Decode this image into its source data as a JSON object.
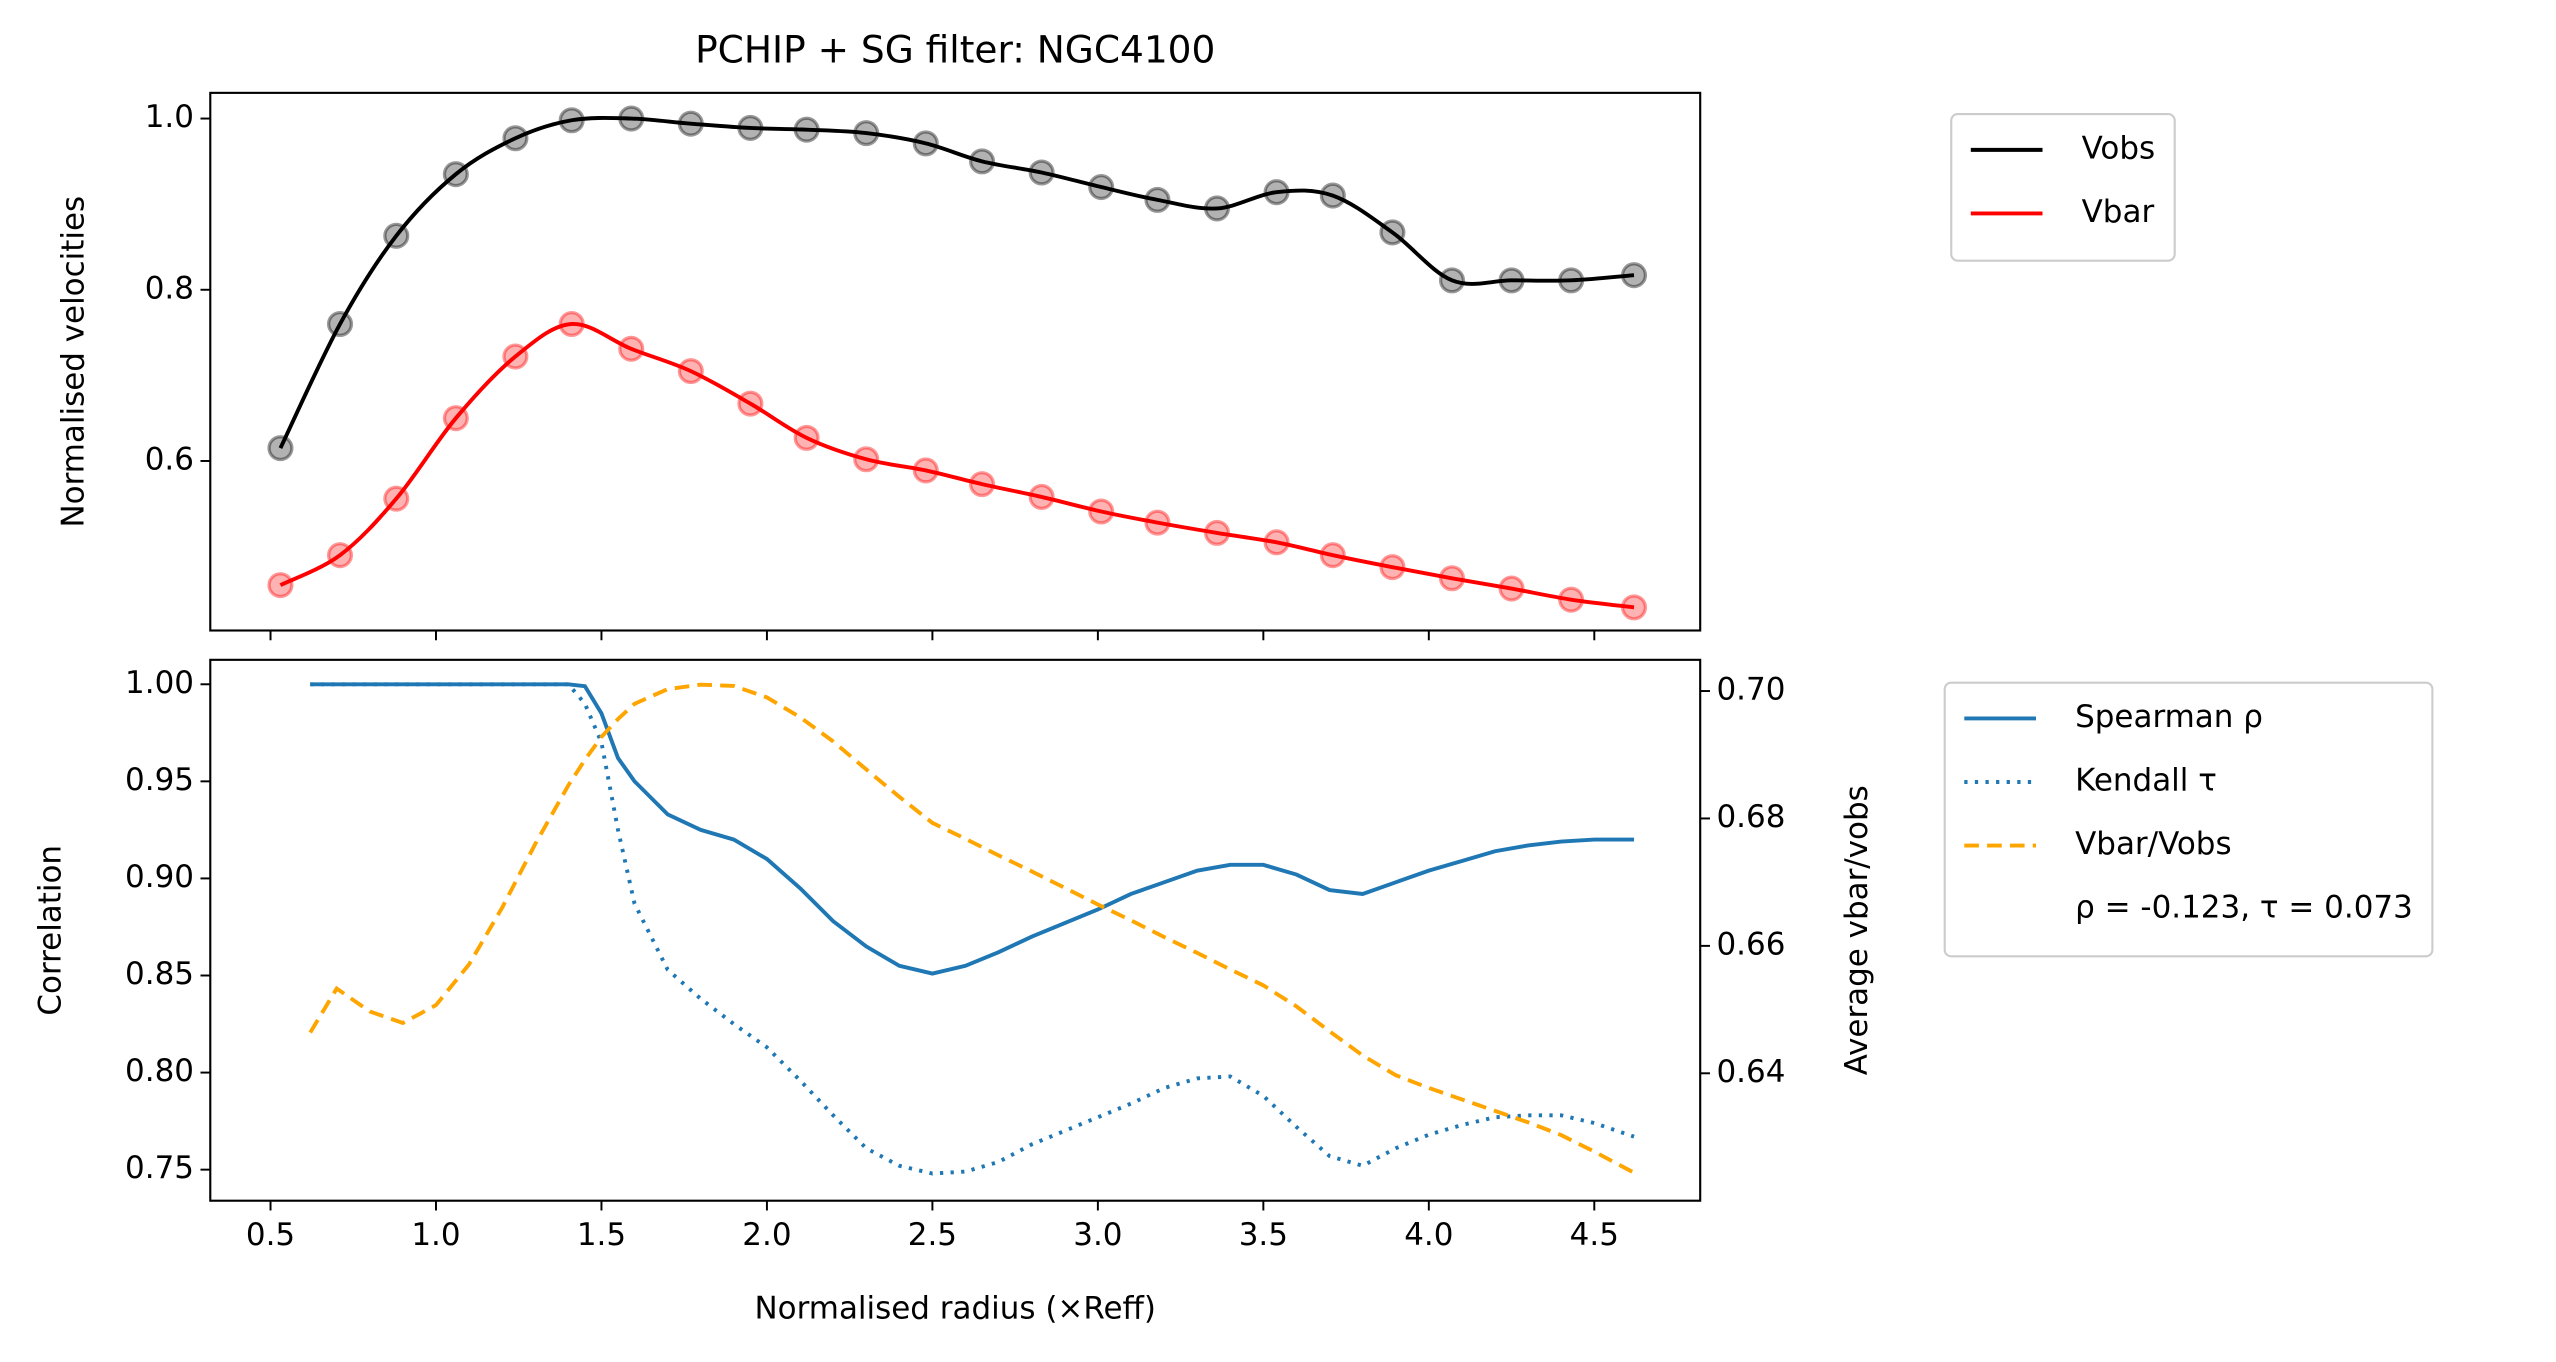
{
  "chart_data": [
    {
      "type": "line",
      "title": "PCHIP + SG filter: NGC4100",
      "ylabel": "Normalised velocities",
      "x": [
        0.53,
        0.71,
        0.88,
        1.06,
        1.24,
        1.41,
        1.59,
        1.77,
        1.95,
        2.12,
        2.3,
        2.48,
        2.65,
        2.83,
        3.01,
        3.18,
        3.36,
        3.54,
        3.71,
        3.89,
        4.07,
        4.25,
        4.43,
        4.62
      ],
      "series": [
        {
          "name": "Vobs",
          "color": "#000000",
          "linestyle": "solid",
          "markers": true,
          "values": [
            0.615,
            0.76,
            0.863,
            0.935,
            0.977,
            0.998,
            1.0,
            0.994,
            0.989,
            0.987,
            0.983,
            0.971,
            0.95,
            0.937,
            0.92,
            0.905,
            0.895,
            0.914,
            0.91,
            0.867,
            0.811,
            0.811,
            0.811,
            0.817
          ]
        },
        {
          "name": "Vbar",
          "color": "#ff0000",
          "linestyle": "solid",
          "markers": true,
          "values": [
            0.455,
            0.49,
            0.556,
            0.65,
            0.722,
            0.76,
            0.731,
            0.705,
            0.667,
            0.627,
            0.602,
            0.589,
            0.573,
            0.558,
            0.541,
            0.528,
            0.516,
            0.505,
            0.49,
            0.476,
            0.463,
            0.451,
            0.438,
            0.429
          ]
        }
      ],
      "xlim": [
        0.318,
        4.82
      ],
      "ylim": [
        0.402,
        1.03
      ],
      "xticks": [
        0.5,
        1,
        1.5,
        2,
        2.5,
        3,
        3.5,
        4,
        4.5
      ],
      "x_tick_labels": false,
      "yticks": [
        0.6,
        0.8,
        {
          "value": 1,
          "label": "1.0"
        }
      ],
      "smooth": true,
      "legend": "outside right"
    },
    {
      "type": "line",
      "xlabel": "Normalised radius (×Reff)",
      "ylabel": "Correlation",
      "y2label": "Average vbar/vobs",
      "x": [
        0.62,
        0.7,
        0.8,
        0.9,
        1.0,
        1.1,
        1.2,
        1.3,
        1.4,
        1.45,
        1.5,
        1.55,
        1.6,
        1.7,
        1.8,
        1.9,
        2.0,
        2.1,
        2.2,
        2.3,
        2.4,
        2.5,
        2.6,
        2.7,
        2.8,
        2.9,
        3.0,
        3.1,
        3.2,
        3.3,
        3.4,
        3.5,
        3.6,
        3.7,
        3.8,
        3.9,
        4.0,
        4.1,
        4.2,
        4.3,
        4.4,
        4.5,
        4.62
      ],
      "series": [
        {
          "name": "Spearman ρ",
          "color": "#1f77b4",
          "linestyle": "solid",
          "values": [
            1,
            1,
            1,
            1,
            1,
            1,
            1,
            1,
            1,
            0.999,
            0.985,
            0.962,
            0.95,
            0.933,
            0.925,
            0.92,
            0.91,
            0.895,
            0.878,
            0.865,
            0.855,
            0.851,
            0.855,
            0.862,
            0.87,
            0.877,
            0.884,
            0.892,
            0.898,
            0.904,
            0.907,
            0.907,
            0.902,
            0.894,
            0.892,
            0.898,
            0.904,
            0.909,
            0.914,
            0.917,
            0.919,
            0.92,
            0.92
          ]
        },
        {
          "name": "Kendall τ",
          "color": "#1f77b4",
          "linestyle": "dotted",
          "values": [
            1,
            1,
            1,
            1,
            1,
            1,
            1,
            1,
            1,
            0.99,
            0.97,
            0.925,
            0.887,
            0.853,
            0.838,
            0.825,
            0.813,
            0.796,
            0.778,
            0.761,
            0.752,
            0.748,
            0.749,
            0.754,
            0.763,
            0.77,
            0.777,
            0.784,
            0.792,
            0.797,
            0.798,
            0.788,
            0.772,
            0.757,
            0.752,
            0.761,
            0.768,
            0.773,
            0.777,
            0.778,
            0.778,
            0.774,
            0.767
          ]
        },
        {
          "name": "Vbar/Vobs",
          "color": "#ffa500",
          "linestyle": "dashed",
          "axis": "y2",
          "values": [
            0.6464,
            0.6533,
            0.6497,
            0.6479,
            0.6507,
            0.6571,
            0.666,
            0.676,
            0.6852,
            0.6892,
            0.6928,
            0.6956,
            0.698,
            0.7003,
            0.701,
            0.7008,
            0.699,
            0.6959,
            0.6921,
            0.6877,
            0.6834,
            0.6793,
            0.6768,
            0.6742,
            0.6717,
            0.6691,
            0.6665,
            0.664,
            0.6614,
            0.6589,
            0.6563,
            0.6538,
            0.6505,
            0.6466,
            0.6428,
            0.6397,
            0.6377,
            0.6359,
            0.6341,
            0.6323,
            0.6303,
            0.6277,
            0.6244
          ]
        }
      ],
      "legend_note": "ρ = -0.123, τ = 0.073",
      "xlim": [
        0.318,
        4.82
      ],
      "ylim": [
        0.734,
        1.0126
      ],
      "y2lim": [
        0.62,
        0.7049
      ],
      "xticks": [
        0.5,
        {
          "value": 1,
          "label": "1.0"
        },
        1.5,
        {
          "value": 2,
          "label": "2.0"
        },
        2.5,
        {
          "value": 3,
          "label": "3.0"
        },
        3.5,
        {
          "value": 4,
          "label": "4.0"
        },
        4.5
      ],
      "yticks": [
        {
          "value": 1,
          "label": "1.00"
        },
        0.95,
        {
          "value": 0.9,
          "label": "0.90"
        },
        0.85,
        {
          "value": 0.8,
          "label": "0.80"
        },
        0.75
      ],
      "y2ticks": [
        0.64,
        0.66,
        0.68,
        {
          "value": 0.7,
          "label": "0.70"
        }
      ],
      "ytick_color": "#1f77b4",
      "y2tick_color": "#ffa500",
      "legend": "outside right"
    }
  ]
}
